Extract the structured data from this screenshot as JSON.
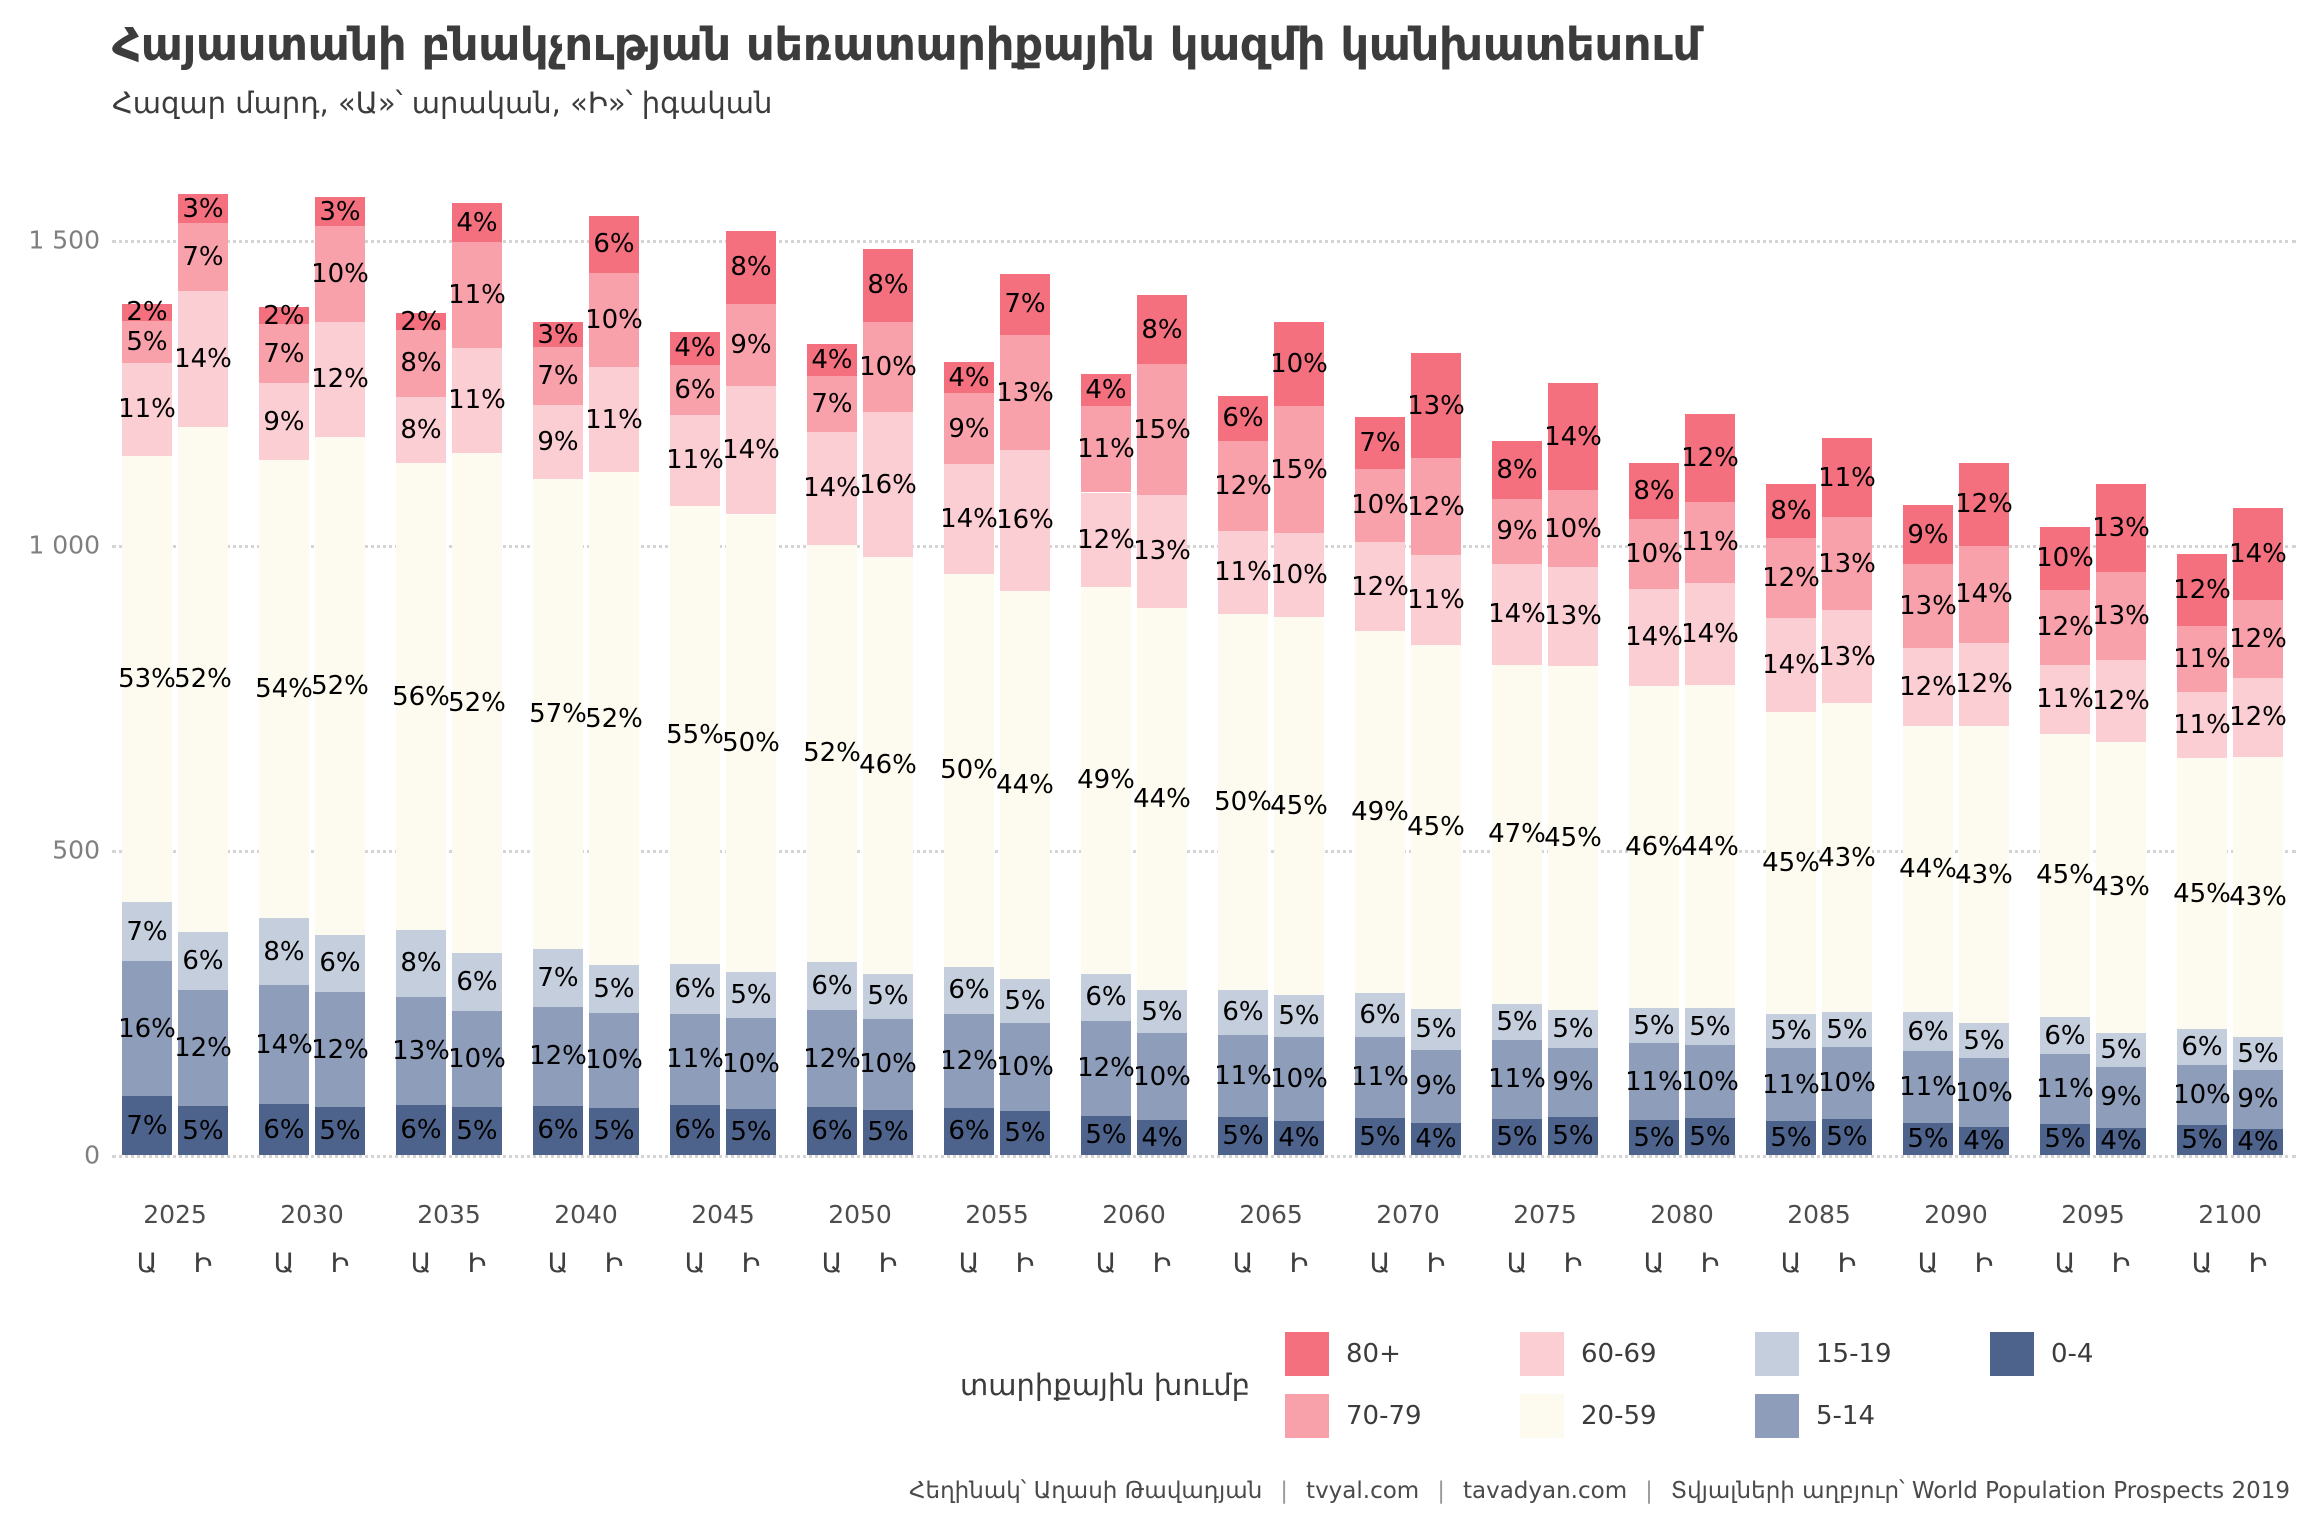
{
  "title": "Հայաստանի բնակչության սեռատարիքային կազմի կանխատեսում",
  "subtitle": "Հազար մարդ, «Ա»՝ արական, «Ի»՝ իգական",
  "legend": {
    "title": "տարիքային խումբ",
    "items": [
      "80+",
      "70-79",
      "60-69",
      "20-59",
      "15-19",
      "5-14",
      "0-4"
    ]
  },
  "footer": {
    "parts": [
      "Հեղինակ՝ Աղասի Թավադյան",
      "tvyal.com",
      "tavadyan.com",
      "Տվյալների աղբյուր՝ World Population Prospects 2019"
    ],
    "separator": "|"
  },
  "sex_labels": {
    "male": "Ա",
    "female": "Ի"
  },
  "chart_data": {
    "type": "bar",
    "stacked": true,
    "units": "thousand people",
    "grid": "dotted horizontal",
    "ylim": [
      0,
      1600
    ],
    "yticks": [
      0,
      500,
      1000,
      1500
    ],
    "ytick_labels": [
      "0",
      "500",
      "1 000",
      "1 500"
    ],
    "age_groups_top_down": [
      "80+",
      "70-79",
      "60-69",
      "20-59",
      "15-19",
      "5-14",
      "0-4"
    ],
    "colors": {
      "80+": "#f4707e",
      "70-79": "#f9a1ab",
      "60-69": "#fbced3",
      "20-59": "#fdfaef",
      "15-19": "#c5cedc",
      "5-14": "#8d9dba",
      "0-4": "#4e638c"
    },
    "years": [
      {
        "year": "2025",
        "male": {
          "total": 1395,
          "pct": [
            2,
            5,
            11,
            53,
            7,
            16,
            7
          ]
        },
        "female": {
          "total": 1575,
          "pct": [
            3,
            7,
            14,
            52,
            6,
            12,
            5
          ]
        }
      },
      {
        "year": "2030",
        "male": {
          "total": 1390,
          "pct": [
            2,
            7,
            9,
            54,
            8,
            14,
            6
          ]
        },
        "female": {
          "total": 1570,
          "pct": [
            3,
            10,
            12,
            52,
            6,
            12,
            5
          ]
        }
      },
      {
        "year": "2035",
        "male": {
          "total": 1380,
          "pct": [
            2,
            8,
            8,
            56,
            8,
            13,
            6
          ]
        },
        "female": {
          "total": 1560,
          "pct": [
            4,
            11,
            11,
            52,
            6,
            10,
            5
          ]
        }
      },
      {
        "year": "2040",
        "male": {
          "total": 1365,
          "pct": [
            3,
            7,
            9,
            57,
            7,
            12,
            6
          ]
        },
        "female": {
          "total": 1540,
          "pct": [
            6,
            10,
            11,
            52,
            5,
            10,
            5
          ]
        }
      },
      {
        "year": "2045",
        "male": {
          "total": 1350,
          "pct": [
            4,
            6,
            11,
            55,
            6,
            11,
            6
          ]
        },
        "female": {
          "total": 1515,
          "pct": [
            8,
            9,
            14,
            50,
            5,
            10,
            5
          ]
        }
      },
      {
        "year": "2050",
        "male": {
          "total": 1330,
          "pct": [
            4,
            7,
            14,
            52,
            6,
            12,
            6
          ]
        },
        "female": {
          "total": 1485,
          "pct": [
            8,
            10,
            16,
            46,
            5,
            10,
            5
          ]
        }
      },
      {
        "year": "2055",
        "male": {
          "total": 1300,
          "pct": [
            4,
            9,
            14,
            50,
            6,
            12,
            6
          ]
        },
        "female": {
          "total": 1445,
          "pct": [
            7,
            13,
            16,
            44,
            5,
            10,
            5
          ]
        }
      },
      {
        "year": "2060",
        "male": {
          "total": 1280,
          "pct": [
            4,
            11,
            12,
            49,
            6,
            12,
            5
          ]
        },
        "female": {
          "total": 1410,
          "pct": [
            8,
            15,
            13,
            44,
            5,
            10,
            4
          ]
        }
      },
      {
        "year": "2065",
        "male": {
          "total": 1245,
          "pct": [
            6,
            12,
            11,
            50,
            6,
            11,
            5
          ]
        },
        "female": {
          "total": 1365,
          "pct": [
            10,
            15,
            10,
            45,
            5,
            10,
            4
          ]
        }
      },
      {
        "year": "2070",
        "male": {
          "total": 1210,
          "pct": [
            7,
            10,
            12,
            49,
            6,
            11,
            5
          ]
        },
        "female": {
          "total": 1315,
          "pct": [
            13,
            12,
            11,
            45,
            5,
            9,
            4
          ]
        }
      },
      {
        "year": "2075",
        "male": {
          "total": 1170,
          "pct": [
            8,
            9,
            14,
            47,
            5,
            11,
            5
          ]
        },
        "female": {
          "total": 1265,
          "pct": [
            14,
            10,
            13,
            45,
            5,
            9,
            5
          ]
        }
      },
      {
        "year": "2080",
        "male": {
          "total": 1135,
          "pct": [
            8,
            10,
            14,
            46,
            5,
            11,
            5
          ]
        },
        "female": {
          "total": 1215,
          "pct": [
            12,
            11,
            14,
            44,
            5,
            10,
            5
          ]
        }
      },
      {
        "year": "2085",
        "male": {
          "total": 1100,
          "pct": [
            8,
            12,
            14,
            45,
            5,
            11,
            5
          ]
        },
        "female": {
          "total": 1175,
          "pct": [
            11,
            13,
            13,
            43,
            5,
            10,
            5
          ]
        }
      },
      {
        "year": "2090",
        "male": {
          "total": 1065,
          "pct": [
            9,
            13,
            12,
            44,
            6,
            11,
            5
          ]
        },
        "female": {
          "total": 1135,
          "pct": [
            12,
            14,
            12,
            43,
            5,
            10,
            4
          ]
        }
      },
      {
        "year": "2095",
        "male": {
          "total": 1030,
          "pct": [
            10,
            12,
            11,
            45,
            6,
            11,
            5
          ]
        },
        "female": {
          "total": 1100,
          "pct": [
            13,
            13,
            12,
            43,
            5,
            9,
            4
          ]
        }
      },
      {
        "year": "2100",
        "male": {
          "total": 985,
          "pct": [
            12,
            11,
            11,
            45,
            6,
            10,
            5
          ]
        },
        "female": {
          "total": 1060,
          "pct": [
            14,
            12,
            12,
            43,
            5,
            9,
            4
          ]
        }
      }
    ]
  }
}
